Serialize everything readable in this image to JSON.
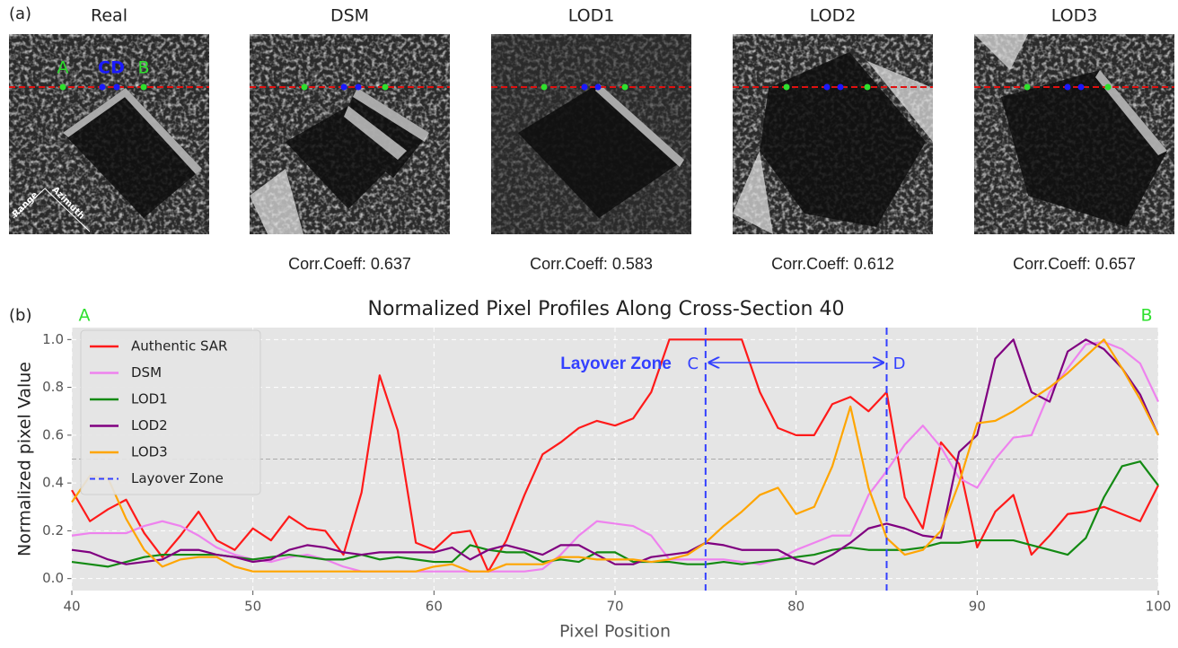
{
  "panel_a": {
    "label": "(a)",
    "images": [
      {
        "title": "Real",
        "markers": [
          "A",
          "C",
          "D",
          "B"
        ],
        "directions": [
          "Range",
          "Azimuth"
        ]
      },
      {
        "title": "DSM",
        "caption": "Corr.Coeff: 0.637"
      },
      {
        "title": "LOD1",
        "caption": "Corr.Coeff: 0.583"
      },
      {
        "title": "LOD2",
        "caption": "Corr.Coeff: 0.612"
      },
      {
        "title": "LOD3",
        "caption": "Corr.Coeff: 0.657"
      }
    ]
  },
  "panel_b_label": "(b)",
  "chart_data": {
    "type": "line",
    "title": "Normalized Pixel Profiles Along Cross-Section 40",
    "x_label": "Pixel Position",
    "y_label": "Normalized pixel Value",
    "end_labels": [
      "A",
      "B"
    ],
    "x": [
      40,
      41,
      42,
      43,
      44,
      45,
      46,
      47,
      48,
      49,
      50,
      51,
      52,
      53,
      54,
      55,
      56,
      57,
      58,
      59,
      60,
      61,
      62,
      63,
      64,
      65,
      66,
      67,
      68,
      69,
      70,
      71,
      72,
      73,
      74,
      75,
      76,
      77,
      78,
      79,
      80,
      81,
      82,
      83,
      84,
      85,
      86,
      87,
      88,
      89,
      90,
      91,
      92,
      93,
      94,
      95,
      96,
      97,
      98,
      99,
      100
    ],
    "series": [
      {
        "name": "Authentic SAR",
        "color": "#ff1a1a",
        "values": [
          0.37,
          0.24,
          0.29,
          0.33,
          0.19,
          0.09,
          0.18,
          0.28,
          0.16,
          0.12,
          0.21,
          0.16,
          0.26,
          0.21,
          0.2,
          0.1,
          0.36,
          0.85,
          0.62,
          0.15,
          0.12,
          0.19,
          0.2,
          0.03,
          0.16,
          0.35,
          0.52,
          0.57,
          0.63,
          0.66,
          0.64,
          0.67,
          0.78,
          1.0,
          1.0,
          1.0,
          1.0,
          1.0,
          0.78,
          0.63,
          0.6,
          0.6,
          0.73,
          0.76,
          0.7,
          0.78,
          0.34,
          0.21,
          0.57,
          0.48,
          0.13,
          0.28,
          0.35,
          0.1,
          0.18,
          0.27,
          0.28,
          0.3,
          0.27,
          0.24,
          0.39
        ]
      },
      {
        "name": "DSM",
        "color": "#ee82ee",
        "values": [
          0.18,
          0.19,
          0.19,
          0.19,
          0.22,
          0.24,
          0.22,
          0.18,
          0.13,
          0.1,
          0.08,
          0.07,
          0.09,
          0.1,
          0.08,
          0.05,
          0.03,
          0.03,
          0.03,
          0.03,
          0.03,
          0.03,
          0.03,
          0.03,
          0.03,
          0.03,
          0.04,
          0.1,
          0.18,
          0.24,
          0.23,
          0.22,
          0.18,
          0.08,
          0.08,
          0.08,
          0.08,
          0.07,
          0.06,
          0.08,
          0.12,
          0.15,
          0.18,
          0.18,
          0.35,
          0.45,
          0.56,
          0.64,
          0.55,
          0.42,
          0.38,
          0.5,
          0.59,
          0.6,
          0.78,
          0.88,
          0.98,
          0.99,
          0.96,
          0.9,
          0.74
        ]
      },
      {
        "name": "LOD1",
        "color": "#138a13",
        "values": [
          0.07,
          0.06,
          0.05,
          0.07,
          0.09,
          0.1,
          0.1,
          0.1,
          0.1,
          0.09,
          0.08,
          0.09,
          0.1,
          0.09,
          0.08,
          0.08,
          0.1,
          0.08,
          0.09,
          0.08,
          0.07,
          0.07,
          0.14,
          0.12,
          0.11,
          0.11,
          0.07,
          0.08,
          0.07,
          0.11,
          0.11,
          0.07,
          0.07,
          0.07,
          0.06,
          0.06,
          0.07,
          0.06,
          0.07,
          0.08,
          0.09,
          0.1,
          0.12,
          0.13,
          0.12,
          0.12,
          0.12,
          0.13,
          0.15,
          0.15,
          0.16,
          0.16,
          0.16,
          0.14,
          0.12,
          0.1,
          0.17,
          0.34,
          0.47,
          0.49,
          0.39
        ]
      },
      {
        "name": "LOD2",
        "color": "#800080",
        "values": [
          0.12,
          0.11,
          0.08,
          0.06,
          0.07,
          0.08,
          0.12,
          0.12,
          0.1,
          0.09,
          0.07,
          0.08,
          0.12,
          0.14,
          0.13,
          0.11,
          0.1,
          0.11,
          0.11,
          0.11,
          0.11,
          0.13,
          0.08,
          0.12,
          0.14,
          0.12,
          0.1,
          0.14,
          0.14,
          0.1,
          0.06,
          0.06,
          0.09,
          0.1,
          0.11,
          0.15,
          0.14,
          0.12,
          0.12,
          0.12,
          0.08,
          0.06,
          0.1,
          0.15,
          0.21,
          0.23,
          0.21,
          0.18,
          0.17,
          0.53,
          0.6,
          0.92,
          1.0,
          0.78,
          0.74,
          0.95,
          1.0,
          0.96,
          0.88,
          0.77,
          0.6
        ]
      },
      {
        "name": "LOD3",
        "color": "#ffa500",
        "values": [
          0.32,
          0.43,
          0.42,
          0.25,
          0.12,
          0.05,
          0.08,
          0.09,
          0.09,
          0.05,
          0.03,
          0.03,
          0.03,
          0.03,
          0.03,
          0.03,
          0.03,
          0.03,
          0.03,
          0.03,
          0.05,
          0.06,
          0.03,
          0.03,
          0.06,
          0.06,
          0.06,
          0.09,
          0.09,
          0.08,
          0.08,
          0.08,
          0.07,
          0.08,
          0.1,
          0.15,
          0.22,
          0.28,
          0.35,
          0.38,
          0.27,
          0.3,
          0.47,
          0.72,
          0.38,
          0.17,
          0.1,
          0.12,
          0.2,
          0.4,
          0.65,
          0.66,
          0.7,
          0.75,
          0.8,
          0.86,
          0.93,
          1.0,
          0.88,
          0.75,
          0.6
        ]
      }
    ],
    "layover": {
      "name": "Layover Zone",
      "color": "#3340ff",
      "x": [
        75,
        85
      ],
      "annotation": "Layover Zone",
      "ends": [
        "C",
        "D"
      ]
    },
    "hline": 0.5,
    "xlim": [
      40,
      100
    ],
    "xticks": [
      40,
      50,
      60,
      70,
      80,
      90,
      100
    ],
    "ylim": [
      -0.05,
      1.05
    ],
    "yticks": [
      {
        "value": 0,
        "label": "0.0"
      },
      0.2,
      0.4,
      0.6,
      0.8,
      {
        "value": 1,
        "label": "1.0"
      }
    ],
    "grid": true,
    "legend": "upper left"
  }
}
